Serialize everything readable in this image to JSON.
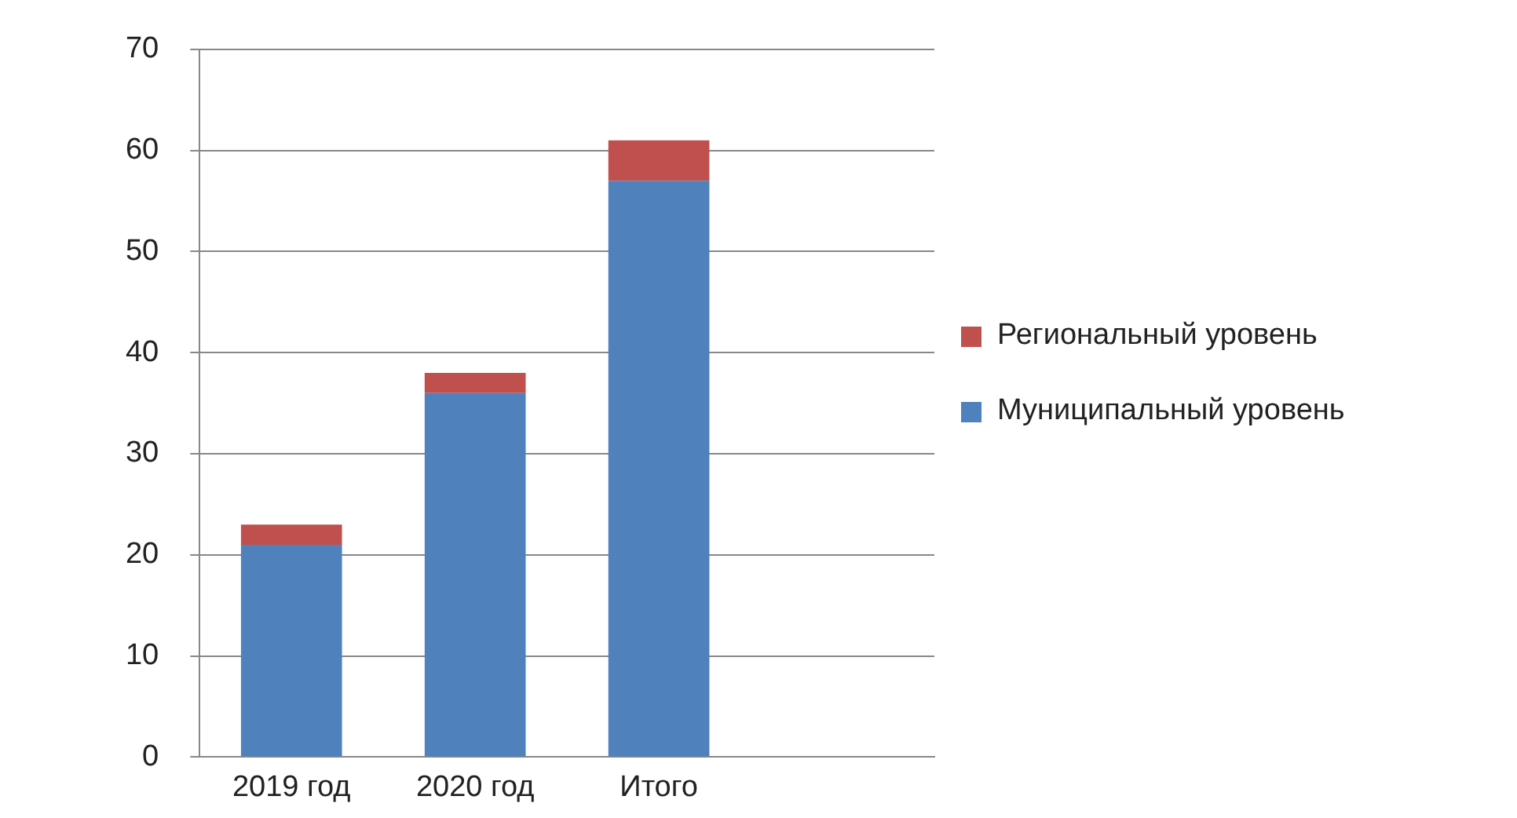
{
  "chart_data": {
    "type": "bar",
    "stacked": true,
    "categories": [
      "2019 год",
      "2020 год",
      "Итого",
      null
    ],
    "series": [
      {
        "name": "Муниципальный уровень",
        "color": "#4f81bd",
        "values": [
          21,
          36,
          57,
          null
        ]
      },
      {
        "name": "Региональный уровень",
        "color": "#c0504d",
        "values": [
          2,
          2,
          4,
          null
        ]
      }
    ],
    "ylim": [
      0,
      70
    ],
    "yticks": [
      0,
      10,
      20,
      30,
      40,
      50,
      60,
      70
    ],
    "grid": "y",
    "legend": "right"
  }
}
